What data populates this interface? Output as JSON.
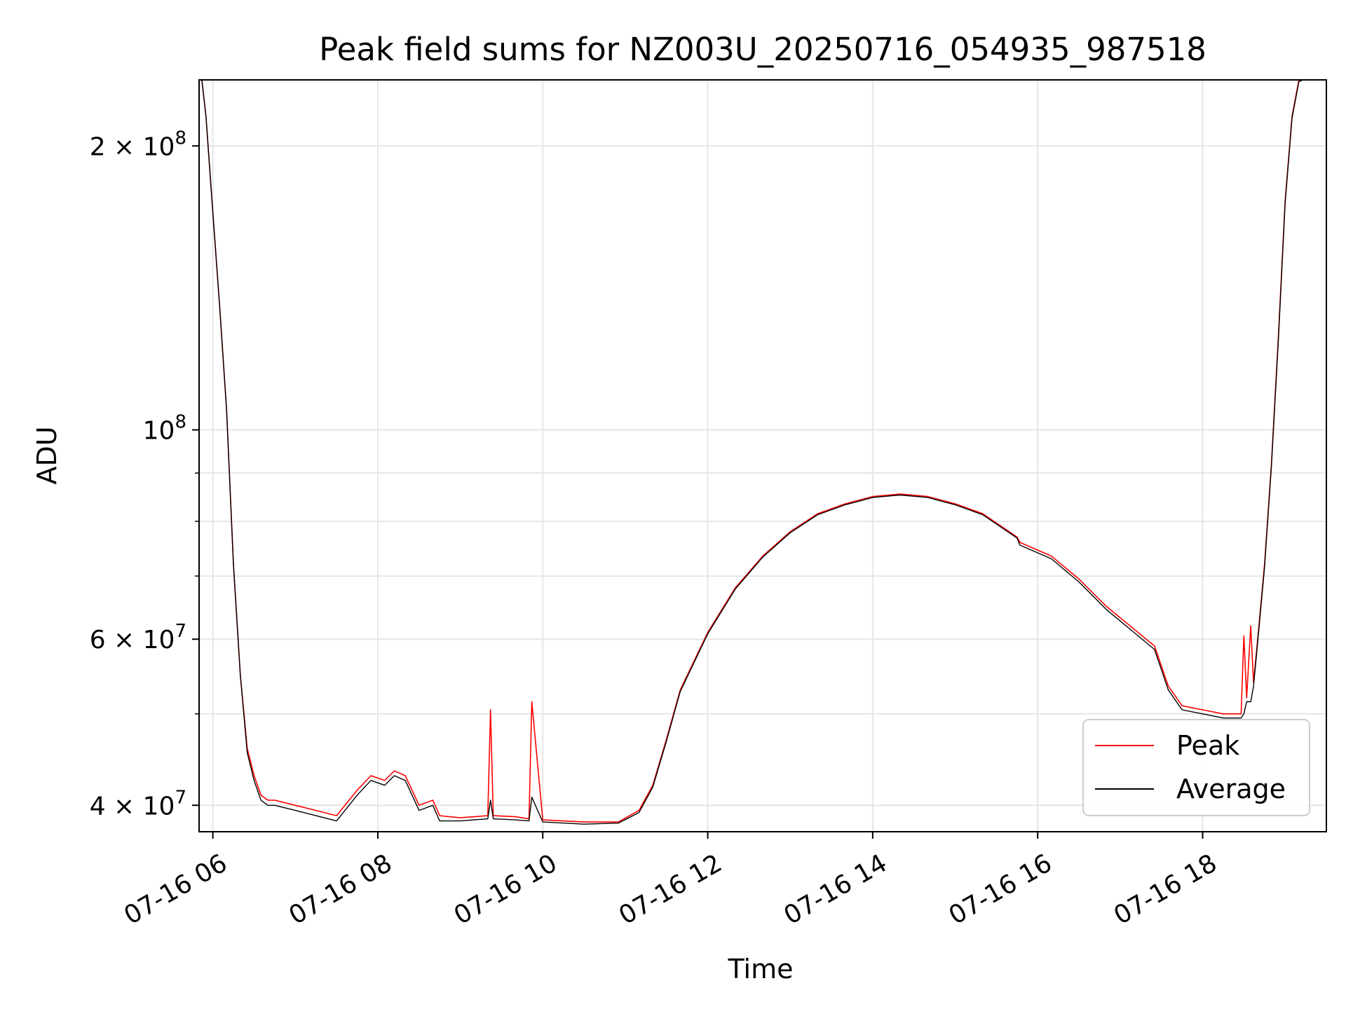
{
  "chart_data": {
    "type": "line",
    "title": "Peak field sums for NZ003U_20250716_054935_987518",
    "xlabel": "Time",
    "ylabel": "ADU",
    "y_scale": "log",
    "ylim": [
      37500000,
      235000000
    ],
    "xlim": [
      "2025-07-16 05:50",
      "2025-07-16 19:30"
    ],
    "grid": true,
    "legend_position": "lower right",
    "x_tick_labels": [
      "07-16 06",
      "07-16 08",
      "07-16 10",
      "07-16 12",
      "07-16 14",
      "07-16 16",
      "07-16 18"
    ],
    "x_tick_values": [
      "2025-07-16 06:00",
      "2025-07-16 08:00",
      "2025-07-16 10:00",
      "2025-07-16 12:00",
      "2025-07-16 14:00",
      "2025-07-16 16:00",
      "2025-07-16 18:00"
    ],
    "y_major_ticks": [
      {
        "value": 100000000,
        "base": "10",
        "exp": "8"
      },
      {
        "value": 200000000,
        "base": "2 × 10",
        "exp": "8"
      },
      {
        "value": 40000000,
        "base": "4 × 10",
        "exp": "7"
      },
      {
        "value": 60000000,
        "base": "6 × 10",
        "exp": "7"
      }
    ],
    "y_minor_gridlines": [
      50000000,
      70000000,
      80000000,
      90000000
    ],
    "colors": {
      "peak": "#ff0000",
      "average": "#000000"
    },
    "series": [
      {
        "name": "Peak",
        "color": "#ff0000",
        "x": [
          "2025-07-16 05:49",
          "2025-07-16 05:52",
          "2025-07-16 05:55",
          "2025-07-16 06:00",
          "2025-07-16 06:05",
          "2025-07-16 06:10",
          "2025-07-16 06:15",
          "2025-07-16 06:20",
          "2025-07-16 06:25",
          "2025-07-16 06:30",
          "2025-07-16 06:35",
          "2025-07-16 06:40",
          "2025-07-16 06:45",
          "2025-07-16 07:00",
          "2025-07-16 07:15",
          "2025-07-16 07:30",
          "2025-07-16 07:45",
          "2025-07-16 07:55",
          "2025-07-16 08:05",
          "2025-07-16 08:12",
          "2025-07-16 08:20",
          "2025-07-16 08:30",
          "2025-07-16 08:40",
          "2025-07-16 08:45",
          "2025-07-16 09:00",
          "2025-07-16 09:20",
          "2025-07-16 09:22",
          "2025-07-16 09:24",
          "2025-07-16 09:40",
          "2025-07-16 09:50",
          "2025-07-16 09:52",
          "2025-07-16 10:00",
          "2025-07-16 10:30",
          "2025-07-16 10:55",
          "2025-07-16 11:10",
          "2025-07-16 11:20",
          "2025-07-16 11:30",
          "2025-07-16 11:40",
          "2025-07-16 12:00",
          "2025-07-16 12:20",
          "2025-07-16 12:40",
          "2025-07-16 13:00",
          "2025-07-16 13:20",
          "2025-07-16 13:40",
          "2025-07-16 14:00",
          "2025-07-16 14:20",
          "2025-07-16 14:40",
          "2025-07-16 15:00",
          "2025-07-16 15:20",
          "2025-07-16 15:45",
          "2025-07-16 15:47",
          "2025-07-16 16:10",
          "2025-07-16 16:30",
          "2025-07-16 16:50",
          "2025-07-16 17:10",
          "2025-07-16 17:25",
          "2025-07-16 17:35",
          "2025-07-16 17:45",
          "2025-07-16 18:00",
          "2025-07-16 18:15",
          "2025-07-16 18:28",
          "2025-07-16 18:30",
          "2025-07-16 18:32",
          "2025-07-16 18:35",
          "2025-07-16 18:37",
          "2025-07-16 18:40",
          "2025-07-16 18:45",
          "2025-07-16 18:50",
          "2025-07-16 18:55",
          "2025-07-16 19:00",
          "2025-07-16 19:05",
          "2025-07-16 19:10",
          "2025-07-16 19:13"
        ],
        "values": [
          240000000,
          235000000,
          215000000,
          170000000,
          135000000,
          105000000,
          72000000,
          55000000,
          46000000,
          43000000,
          41000000,
          40500000,
          40500000,
          40000000,
          39500000,
          39000000,
          41500000,
          43000000,
          42500000,
          43500000,
          43000000,
          40000000,
          40500000,
          39000000,
          38800000,
          39000000,
          50500000,
          39000000,
          38900000,
          38700000,
          51500000,
          38600000,
          38400000,
          38400000,
          39500000,
          42000000,
          47000000,
          53000000,
          61000000,
          68000000,
          73500000,
          78000000,
          81500000,
          83500000,
          85000000,
          85500000,
          85000000,
          83500000,
          81500000,
          77000000,
          76000000,
          73500000,
          69500000,
          65000000,
          61500000,
          59000000,
          53500000,
          51000000,
          50500000,
          50000000,
          50000000,
          60500000,
          52000000,
          62000000,
          54000000,
          60000000,
          72000000,
          92000000,
          125000000,
          175000000,
          215000000,
          235000000,
          240000000
        ]
      },
      {
        "name": "Average",
        "color": "#000000",
        "x": [
          "2025-07-16 05:49",
          "2025-07-16 05:52",
          "2025-07-16 05:55",
          "2025-07-16 06:00",
          "2025-07-16 06:05",
          "2025-07-16 06:10",
          "2025-07-16 06:15",
          "2025-07-16 06:20",
          "2025-07-16 06:25",
          "2025-07-16 06:30",
          "2025-07-16 06:35",
          "2025-07-16 06:40",
          "2025-07-16 06:45",
          "2025-07-16 07:00",
          "2025-07-16 07:15",
          "2025-07-16 07:30",
          "2025-07-16 07:45",
          "2025-07-16 07:55",
          "2025-07-16 08:05",
          "2025-07-16 08:12",
          "2025-07-16 08:20",
          "2025-07-16 08:30",
          "2025-07-16 08:40",
          "2025-07-16 08:45",
          "2025-07-16 09:00",
          "2025-07-16 09:20",
          "2025-07-16 09:22",
          "2025-07-16 09:24",
          "2025-07-16 09:40",
          "2025-07-16 09:50",
          "2025-07-16 09:52",
          "2025-07-16 10:00",
          "2025-07-16 10:30",
          "2025-07-16 10:55",
          "2025-07-16 11:10",
          "2025-07-16 11:20",
          "2025-07-16 11:30",
          "2025-07-16 11:40",
          "2025-07-16 12:00",
          "2025-07-16 12:20",
          "2025-07-16 12:40",
          "2025-07-16 13:00",
          "2025-07-16 13:20",
          "2025-07-16 13:40",
          "2025-07-16 14:00",
          "2025-07-16 14:20",
          "2025-07-16 14:40",
          "2025-07-16 15:00",
          "2025-07-16 15:20",
          "2025-07-16 15:45",
          "2025-07-16 15:47",
          "2025-07-16 16:10",
          "2025-07-16 16:30",
          "2025-07-16 16:50",
          "2025-07-16 17:10",
          "2025-07-16 17:25",
          "2025-07-16 17:35",
          "2025-07-16 17:45",
          "2025-07-16 18:00",
          "2025-07-16 18:15",
          "2025-07-16 18:28",
          "2025-07-16 18:30",
          "2025-07-16 18:32",
          "2025-07-16 18:35",
          "2025-07-16 18:37",
          "2025-07-16 18:40",
          "2025-07-16 18:45",
          "2025-07-16 18:50",
          "2025-07-16 18:55",
          "2025-07-16 19:00",
          "2025-07-16 19:05",
          "2025-07-16 19:10",
          "2025-07-16 19:13"
        ],
        "values": [
          240000000,
          235000000,
          215000000,
          170000000,
          135000000,
          105000000,
          72000000,
          55000000,
          45500000,
          42500000,
          40500000,
          40000000,
          40000000,
          39500000,
          39000000,
          38500000,
          41000000,
          42500000,
          42000000,
          43000000,
          42500000,
          39500000,
          40000000,
          38500000,
          38500000,
          38700000,
          40500000,
          38700000,
          38600000,
          38500000,
          40800000,
          38400000,
          38200000,
          38300000,
          39300000,
          41800000,
          46800000,
          52800000,
          60800000,
          67800000,
          73300000,
          77800000,
          81300000,
          83300000,
          84800000,
          85300000,
          84800000,
          83300000,
          81300000,
          76800000,
          75500000,
          73000000,
          69000000,
          64500000,
          61000000,
          58500000,
          53000000,
          50500000,
          50000000,
          49500000,
          49500000,
          50000000,
          51500000,
          51500000,
          53500000,
          59500000,
          71500000,
          91500000,
          124000000,
          174000000,
          214000000,
          234000000,
          240000000
        ]
      }
    ]
  }
}
